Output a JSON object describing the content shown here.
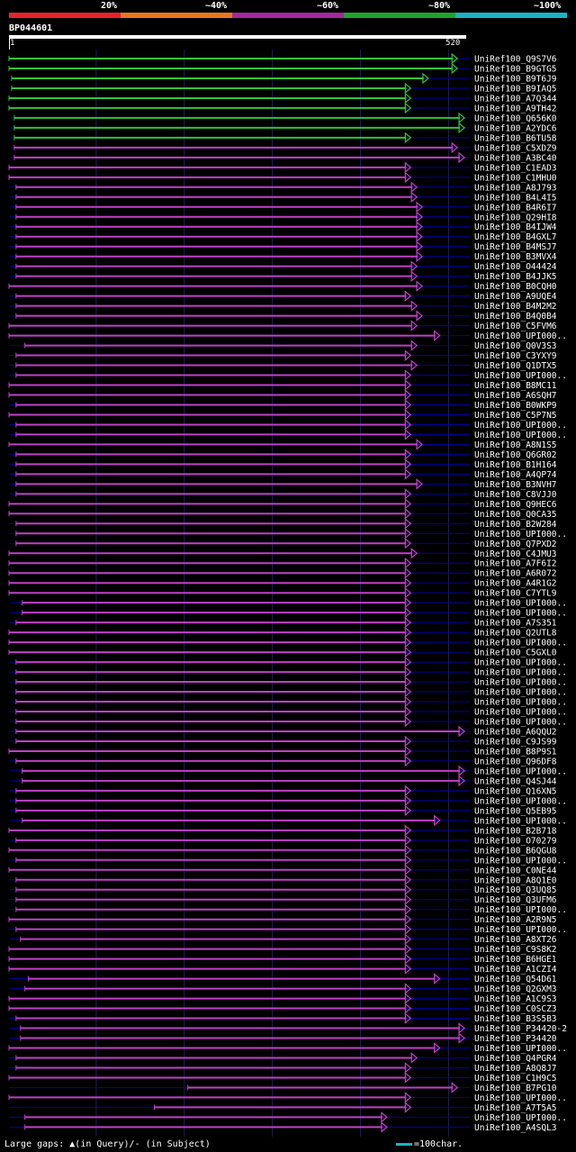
{
  "scale": {
    "labels": [
      "20%",
      "~40%",
      "~60%",
      "~80%",
      "~100%"
    ],
    "colors": [
      "#e8222a",
      "#e8761e",
      "#a4289e",
      "#1fa22d",
      "#18b3c4"
    ]
  },
  "query": {
    "id": "BP044601",
    "start": "1",
    "end": "520",
    "length": 520
  },
  "colors": {
    "green": "#33c333",
    "magenta": "#c040c8",
    "blue": "#0000a0",
    "gap": "#ffff99"
  },
  "hits": [
    {
      "name": "UniRef100_Q9S7V6",
      "s": 1,
      "e": 510,
      "c": "g"
    },
    {
      "name": "UniRef100_B9GTG5",
      "s": 1,
      "e": 510,
      "c": "g"
    },
    {
      "name": "UniRef100_B9T6J9",
      "s": 4,
      "e": 477,
      "c": "g"
    },
    {
      "name": "UniRef100_B9IAQ5",
      "s": 4,
      "e": 457,
      "c": "g"
    },
    {
      "name": "UniRef100_A7Q344",
      "s": 1,
      "e": 457,
      "c": "g"
    },
    {
      "name": "UniRef100_A9TH42",
      "s": 1,
      "e": 457,
      "c": "g"
    },
    {
      "name": "UniRef100_Q656K0",
      "s": 7,
      "e": 518,
      "c": "g"
    },
    {
      "name": "UniRef100_A2YDC6",
      "s": 7,
      "e": 518,
      "c": "g"
    },
    {
      "name": "UniRef100_B6TU58",
      "s": 7,
      "e": 457,
      "c": "g"
    },
    {
      "name": "UniRef100_C5XDZ9",
      "s": 7,
      "e": 510,
      "c": "m"
    },
    {
      "name": "UniRef100_A3BC40",
      "s": 7,
      "e": 518,
      "c": "m"
    },
    {
      "name": "UniRef100_C1EAD3",
      "s": 1,
      "e": 457,
      "c": "m"
    },
    {
      "name": "UniRef100_C1MHU0",
      "s": 1,
      "e": 457,
      "c": "m"
    },
    {
      "name": "UniRef100_A8J793",
      "s": 9,
      "e": 464,
      "c": "m"
    },
    {
      "name": "UniRef100_B4L4I5",
      "s": 9,
      "e": 464,
      "c": "m"
    },
    {
      "name": "UniRef100_B4R6I7",
      "s": 9,
      "e": 470,
      "c": "m"
    },
    {
      "name": "UniRef100_Q29HI8",
      "s": 9,
      "e": 470,
      "c": "m"
    },
    {
      "name": "UniRef100_B4IJW4",
      "s": 9,
      "e": 470,
      "c": "m"
    },
    {
      "name": "UniRef100_B4GXL7",
      "s": 9,
      "e": 470,
      "c": "m"
    },
    {
      "name": "UniRef100_B4MSJ7",
      "s": 9,
      "e": 470,
      "c": "m"
    },
    {
      "name": "UniRef100_B3MVX4",
      "s": 9,
      "e": 470,
      "c": "m"
    },
    {
      "name": "UniRef100_O44424",
      "s": 9,
      "e": 464,
      "c": "m"
    },
    {
      "name": "UniRef100_B4JJK5",
      "s": 9,
      "e": 464,
      "c": "m"
    },
    {
      "name": "UniRef100_B0CQH0",
      "s": 1,
      "e": 470,
      "c": "m"
    },
    {
      "name": "UniRef100_A9UQE4",
      "s": 9,
      "e": 457,
      "c": "m"
    },
    {
      "name": "UniRef100_B4M2M2",
      "s": 9,
      "e": 464,
      "c": "m"
    },
    {
      "name": "UniRef100_B4Q0B4",
      "s": 9,
      "e": 470,
      "c": "m"
    },
    {
      "name": "UniRef100_C5FVM6",
      "s": 1,
      "e": 464,
      "c": "m"
    },
    {
      "name": "UniRef100_UPI000..",
      "s": 1,
      "e": 490,
      "c": "m"
    },
    {
      "name": "UniRef100_Q0V3S3",
      "s": 19,
      "e": 464,
      "c": "m"
    },
    {
      "name": "UniRef100_C3YXY9",
      "s": 9,
      "e": 457,
      "c": "m"
    },
    {
      "name": "UniRef100_Q1DTX5",
      "s": 9,
      "e": 464,
      "c": "m"
    },
    {
      "name": "UniRef100_UPI000..",
      "s": 9,
      "e": 457,
      "c": "m"
    },
    {
      "name": "UniRef100_B8MC11",
      "s": 1,
      "e": 457,
      "c": "m"
    },
    {
      "name": "UniRef100_A6SQH7",
      "s": 1,
      "e": 457,
      "c": "m"
    },
    {
      "name": "UniRef100_B0WKP9",
      "s": 9,
      "e": 457,
      "c": "m"
    },
    {
      "name": "UniRef100_C5P7N5",
      "s": 1,
      "e": 457,
      "c": "m"
    },
    {
      "name": "UniRef100_UPI000..",
      "s": 9,
      "e": 457,
      "c": "m"
    },
    {
      "name": "UniRef100_UPI000..",
      "s": 9,
      "e": 457,
      "c": "m"
    },
    {
      "name": "UniRef100_A8N1S5",
      "s": 1,
      "e": 470,
      "c": "m"
    },
    {
      "name": "UniRef100_Q6GR02",
      "s": 9,
      "e": 457,
      "c": "m"
    },
    {
      "name": "UniRef100_B1H164",
      "s": 9,
      "e": 457,
      "c": "m"
    },
    {
      "name": "UniRef100_A4QP74",
      "s": 9,
      "e": 457,
      "c": "m"
    },
    {
      "name": "UniRef100_B3NVH7",
      "s": 9,
      "e": 470,
      "c": "m"
    },
    {
      "name": "UniRef100_C8VJJ0",
      "s": 9,
      "e": 457,
      "c": "m"
    },
    {
      "name": "UniRef100_Q9HEC6",
      "s": 1,
      "e": 457,
      "c": "m"
    },
    {
      "name": "UniRef100_Q0CA35",
      "s": 1,
      "e": 457,
      "c": "m"
    },
    {
      "name": "UniRef100_B2W284",
      "s": 9,
      "e": 457,
      "c": "m"
    },
    {
      "name": "UniRef100_UPI000..",
      "s": 9,
      "e": 457,
      "c": "m"
    },
    {
      "name": "UniRef100_Q7PXD2",
      "s": 9,
      "e": 457,
      "c": "m"
    },
    {
      "name": "UniRef100_C4JMU3",
      "s": 1,
      "e": 464,
      "c": "m"
    },
    {
      "name": "UniRef100_A7F6I2",
      "s": 1,
      "e": 457,
      "c": "m"
    },
    {
      "name": "UniRef100_A6R072",
      "s": 1,
      "e": 457,
      "c": "m"
    },
    {
      "name": "UniRef100_A4R1G2",
      "s": 1,
      "e": 457,
      "c": "m"
    },
    {
      "name": "UniRef100_C7YTL9",
      "s": 1,
      "e": 457,
      "c": "m"
    },
    {
      "name": "UniRef100_UPI000..",
      "s": 16,
      "e": 457,
      "c": "m"
    },
    {
      "name": "UniRef100_UPI000..",
      "s": 16,
      "e": 457,
      "c": "m"
    },
    {
      "name": "UniRef100_A7S351",
      "s": 9,
      "e": 457,
      "c": "m"
    },
    {
      "name": "UniRef100_Q2UTL8",
      "s": 1,
      "e": 457,
      "c": "m"
    },
    {
      "name": "UniRef100_UPI000..",
      "s": 1,
      "e": 457,
      "c": "m"
    },
    {
      "name": "UniRef100_C5GXL0",
      "s": 1,
      "e": 457,
      "c": "m"
    },
    {
      "name": "UniRef100_UPI000..",
      "s": 9,
      "e": 457,
      "c": "m"
    },
    {
      "name": "UniRef100_UPI000..",
      "s": 9,
      "e": 457,
      "c": "m"
    },
    {
      "name": "UniRef100_UPI000..",
      "s": 9,
      "e": 457,
      "c": "m"
    },
    {
      "name": "UniRef100_UPI000..",
      "s": 9,
      "e": 457,
      "c": "m"
    },
    {
      "name": "UniRef100_UPI000..",
      "s": 9,
      "e": 457,
      "c": "m"
    },
    {
      "name": "UniRef100_UPI000..",
      "s": 9,
      "e": 457,
      "c": "m"
    },
    {
      "name": "UniRef100_UPI000..",
      "s": 9,
      "e": 457,
      "c": "m"
    },
    {
      "name": "UniRef100_A6QQU2",
      "s": 9,
      "e": 518,
      "c": "m"
    },
    {
      "name": "UniRef100_C9JS99",
      "s": 9,
      "e": 457,
      "c": "m"
    },
    {
      "name": "UniRef100_B8P9S1",
      "s": 1,
      "e": 457,
      "c": "m"
    },
    {
      "name": "UniRef100_Q96DF8",
      "s": 9,
      "e": 457,
      "c": "m"
    },
    {
      "name": "UniRef100_UPI000..",
      "s": 16,
      "e": 518,
      "c": "m"
    },
    {
      "name": "UniRef100_Q4SJ44",
      "s": 16,
      "e": 518,
      "c": "m"
    },
    {
      "name": "UniRef100_Q16XN5",
      "s": 9,
      "e": 457,
      "c": "m"
    },
    {
      "name": "UniRef100_UPI000..",
      "s": 9,
      "e": 457,
      "c": "m"
    },
    {
      "name": "UniRef100_Q5EB95",
      "s": 9,
      "e": 457,
      "c": "m"
    },
    {
      "name": "UniRef100_UPI000..",
      "s": 16,
      "e": 490,
      "c": "m"
    },
    {
      "name": "UniRef100_B2B718",
      "s": 1,
      "e": 457,
      "c": "m"
    },
    {
      "name": "UniRef100_O70279",
      "s": 9,
      "e": 457,
      "c": "m"
    },
    {
      "name": "UniRef100_B6QGU8",
      "s": 1,
      "e": 457,
      "c": "m"
    },
    {
      "name": "UniRef100_UPI000..",
      "s": 9,
      "e": 457,
      "c": "m"
    },
    {
      "name": "UniRef100_C0NE44",
      "s": 1,
      "e": 457,
      "c": "m"
    },
    {
      "name": "UniRef100_A8Q1E0",
      "s": 9,
      "e": 457,
      "c": "m"
    },
    {
      "name": "UniRef100_Q3UQ85",
      "s": 9,
      "e": 457,
      "c": "m"
    },
    {
      "name": "UniRef100_Q3UFM6",
      "s": 9,
      "e": 457,
      "c": "m"
    },
    {
      "name": "UniRef100_UPI000..",
      "s": 9,
      "e": 457,
      "c": "m"
    },
    {
      "name": "UniRef100_A2R9N5",
      "s": 1,
      "e": 457,
      "c": "m"
    },
    {
      "name": "UniRef100_UPI000..",
      "s": 9,
      "e": 457,
      "c": "m"
    },
    {
      "name": "UniRef100_A8XT26",
      "s": 14,
      "e": 457,
      "c": "m"
    },
    {
      "name": "UniRef100_C9S8K2",
      "s": 1,
      "e": 457,
      "c": "m"
    },
    {
      "name": "UniRef100_B6HGE1",
      "s": 1,
      "e": 457,
      "c": "m"
    },
    {
      "name": "UniRef100_A1CZI4",
      "s": 1,
      "e": 457,
      "c": "m"
    },
    {
      "name": "UniRef100_Q54D61",
      "s": 23,
      "e": 490,
      "c": "m"
    },
    {
      "name": "UniRef100_Q2GXM3",
      "s": 19,
      "e": 457,
      "c": "m"
    },
    {
      "name": "UniRef100_A1C9S3",
      "s": 1,
      "e": 457,
      "c": "m"
    },
    {
      "name": "UniRef100_C0SCZ3",
      "s": 1,
      "e": 457,
      "c": "m"
    },
    {
      "name": "UniRef100_B3S5B3",
      "s": 9,
      "e": 457,
      "c": "m"
    },
    {
      "name": "UniRef100_P34420-2",
      "s": 14,
      "e": 518,
      "c": "m"
    },
    {
      "name": "UniRef100_P34420",
      "s": 14,
      "e": 518,
      "c": "m"
    },
    {
      "name": "UniRef100_UPI000..",
      "s": 1,
      "e": 490,
      "c": "m"
    },
    {
      "name": "UniRef100_Q4PGR4",
      "s": 9,
      "e": 464,
      "c": "m"
    },
    {
      "name": "UniRef100_A8Q8J7",
      "s": 9,
      "e": 457,
      "c": "m"
    },
    {
      "name": "UniRef100_C1H9C5",
      "s": 1,
      "e": 457,
      "c": "m"
    },
    {
      "name": "UniRef100_B7PG10",
      "s": 204,
      "e": 510,
      "c": "m"
    },
    {
      "name": "UniRef100_UPI000..",
      "s": 1,
      "e": 457,
      "c": "m"
    },
    {
      "name": "UniRef100_A7T5A5",
      "s": 166,
      "e": 457,
      "c": "m"
    },
    {
      "name": "UniRef100_UPI000..",
      "s": 19,
      "e": 430,
      "c": "m"
    },
    {
      "name": "UniRef100_A4SQL3",
      "s": 19,
      "e": 430,
      "c": "m"
    }
  ],
  "footer": {
    "large_gaps": "Large gaps:",
    "in_query": "(in Query)/",
    "in_subject": "- (in Subject)",
    "char_scale": "=100char."
  }
}
